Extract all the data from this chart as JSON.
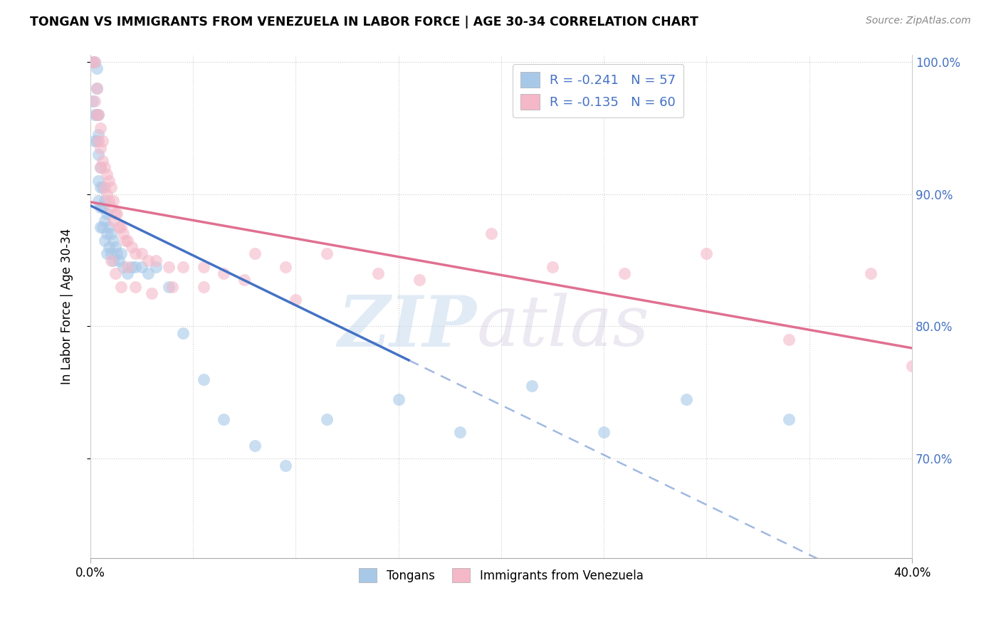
{
  "title": "TONGAN VS IMMIGRANTS FROM VENEZUELA IN LABOR FORCE | AGE 30-34 CORRELATION CHART",
  "source": "Source: ZipAtlas.com",
  "ylabel": "In Labor Force | Age 30-34",
  "watermark_zip": "ZIP",
  "watermark_atlas": "atlas",
  "tongan_color": "#a8c8e8",
  "venezuela_color": "#f4b8c8",
  "trend_blue": "#4472c4",
  "trend_pink": "#e07090",
  "xmin": 0.0,
  "xmax": 0.4,
  "ymin": 0.625,
  "ymax": 1.005,
  "yticks": [
    0.7,
    0.8,
    0.9,
    1.0
  ],
  "ytick_labels": [
    "70.0%",
    "80.0%",
    "90.0%",
    "100.0%"
  ],
  "r_tongan": -0.241,
  "n_tongan": 57,
  "r_venezuela": -0.135,
  "n_venezuela": 60,
  "tongan_x": [
    0.001,
    0.001,
    0.002,
    0.002,
    0.002,
    0.003,
    0.003,
    0.003,
    0.003,
    0.004,
    0.004,
    0.004,
    0.004,
    0.004,
    0.005,
    0.005,
    0.005,
    0.005,
    0.006,
    0.006,
    0.006,
    0.007,
    0.007,
    0.007,
    0.008,
    0.008,
    0.008,
    0.009,
    0.009,
    0.01,
    0.01,
    0.011,
    0.011,
    0.012,
    0.013,
    0.014,
    0.015,
    0.016,
    0.018,
    0.02,
    0.022,
    0.025,
    0.028,
    0.032,
    0.038,
    0.045,
    0.055,
    0.065,
    0.08,
    0.095,
    0.115,
    0.15,
    0.18,
    0.215,
    0.25,
    0.29,
    0.34
  ],
  "tongan_y": [
    1.0,
    0.97,
    1.0,
    0.96,
    0.94,
    0.995,
    0.98,
    0.96,
    0.94,
    0.96,
    0.945,
    0.93,
    0.91,
    0.895,
    0.92,
    0.905,
    0.89,
    0.875,
    0.905,
    0.89,
    0.875,
    0.895,
    0.88,
    0.865,
    0.885,
    0.87,
    0.855,
    0.875,
    0.86,
    0.87,
    0.855,
    0.865,
    0.85,
    0.86,
    0.855,
    0.85,
    0.855,
    0.845,
    0.84,
    0.845,
    0.845,
    0.845,
    0.84,
    0.845,
    0.83,
    0.795,
    0.76,
    0.73,
    0.71,
    0.695,
    0.73,
    0.745,
    0.72,
    0.755,
    0.72,
    0.745,
    0.73
  ],
  "venezuela_x": [
    0.001,
    0.002,
    0.002,
    0.003,
    0.003,
    0.004,
    0.004,
    0.005,
    0.005,
    0.005,
    0.006,
    0.006,
    0.007,
    0.007,
    0.008,
    0.008,
    0.009,
    0.009,
    0.01,
    0.01,
    0.011,
    0.011,
    0.012,
    0.013,
    0.014,
    0.015,
    0.016,
    0.017,
    0.018,
    0.02,
    0.022,
    0.025,
    0.028,
    0.032,
    0.038,
    0.045,
    0.055,
    0.065,
    0.08,
    0.095,
    0.115,
    0.14,
    0.16,
    0.195,
    0.225,
    0.26,
    0.3,
    0.34,
    0.38,
    0.4,
    0.01,
    0.012,
    0.015,
    0.018,
    0.022,
    0.03,
    0.04,
    0.055,
    0.075,
    0.1
  ],
  "venezuela_y": [
    1.0,
    1.0,
    0.97,
    0.98,
    0.96,
    0.96,
    0.94,
    0.95,
    0.935,
    0.92,
    0.94,
    0.925,
    0.92,
    0.905,
    0.915,
    0.9,
    0.91,
    0.895,
    0.905,
    0.89,
    0.895,
    0.88,
    0.885,
    0.885,
    0.875,
    0.875,
    0.87,
    0.865,
    0.865,
    0.86,
    0.855,
    0.855,
    0.85,
    0.85,
    0.845,
    0.845,
    0.845,
    0.84,
    0.855,
    0.845,
    0.855,
    0.84,
    0.835,
    0.87,
    0.845,
    0.84,
    0.855,
    0.79,
    0.84,
    0.77,
    0.85,
    0.84,
    0.83,
    0.845,
    0.83,
    0.825,
    0.83,
    0.83,
    0.835,
    0.82
  ]
}
